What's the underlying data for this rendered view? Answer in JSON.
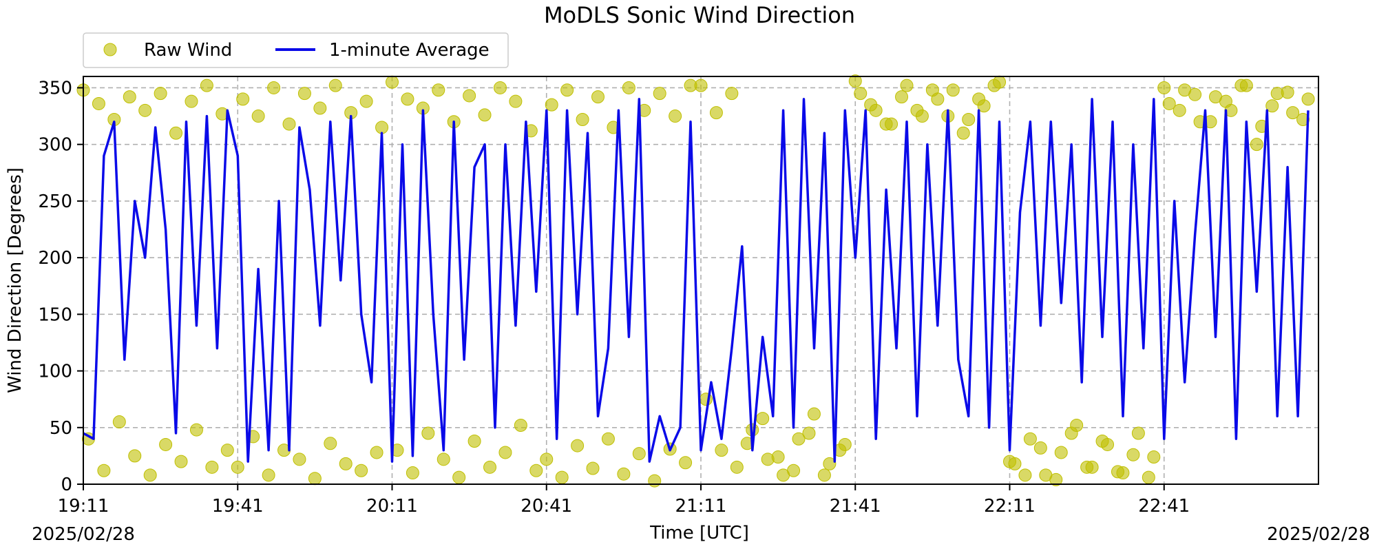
{
  "chart_data": {
    "type": "line",
    "title": "MoDLS Sonic Wind Direction",
    "xlabel": "Time [UTC]",
    "ylabel": "Wind Direction [Degrees]",
    "date_left": "2025/02/28",
    "date_right": "2025/02/28",
    "xlim": [
      "19:11",
      "23:11"
    ],
    "ylim": [
      0,
      360
    ],
    "grid": true,
    "legend_position": "top-left-outside",
    "x_ticks": [
      "19:11",
      "19:41",
      "20:11",
      "20:41",
      "21:11",
      "21:41",
      "22:11",
      "22:41"
    ],
    "y_ticks": [
      0,
      50,
      100,
      150,
      200,
      250,
      300,
      350
    ],
    "series": [
      {
        "name": "Raw Wind",
        "kind": "scatter",
        "color": "#bfbf00",
        "x": [
          "19:11",
          "19:14",
          "19:17",
          "19:20",
          "19:23",
          "19:26",
          "19:29",
          "19:32",
          "19:35",
          "19:38",
          "19:41",
          "19:44",
          "19:47",
          "19:50",
          "19:53",
          "19:56",
          "19:59",
          "20:02",
          "20:05",
          "20:08",
          "20:11",
          "20:14",
          "20:17",
          "20:20",
          "20:23",
          "20:26",
          "20:29",
          "20:32",
          "20:35",
          "20:38",
          "20:41",
          "20:44",
          "20:47",
          "20:50",
          "20:53",
          "20:56",
          "20:59",
          "21:02",
          "21:05",
          "21:08",
          "21:11",
          "21:14",
          "21:17",
          "21:20",
          "21:23",
          "21:26",
          "21:29",
          "21:32",
          "21:35",
          "21:38",
          "21:41",
          "21:44",
          "21:47",
          "21:50",
          "21:53",
          "21:56",
          "21:59",
          "22:02",
          "22:05",
          "22:08",
          "22:11",
          "22:14",
          "22:17",
          "22:20",
          "22:23",
          "22:26",
          "22:29",
          "22:32",
          "22:35",
          "22:38",
          "22:41",
          "22:44",
          "22:47",
          "22:50",
          "22:53",
          "22:56",
          "22:59",
          "23:02",
          "23:05",
          "23:08",
          "19:12",
          "19:15",
          "19:18",
          "19:21",
          "19:24",
          "19:27",
          "19:30",
          "19:33",
          "19:36",
          "19:39",
          "19:42",
          "19:45",
          "19:48",
          "19:51",
          "19:54",
          "19:57",
          "20:00",
          "20:03",
          "20:06",
          "20:09",
          "20:12",
          "20:15",
          "20:18",
          "20:21",
          "20:24",
          "20:27",
          "20:30",
          "20:33",
          "20:36",
          "20:39",
          "20:42",
          "20:45",
          "20:48",
          "20:51",
          "20:54",
          "20:57",
          "21:00",
          "21:03",
          "21:06",
          "21:09",
          "21:12",
          "21:15",
          "21:18",
          "21:21",
          "21:24",
          "21:27",
          "21:30",
          "21:33",
          "21:36",
          "21:39",
          "21:42",
          "21:45",
          "21:48",
          "21:51",
          "21:54",
          "21:57",
          "22:00",
          "22:03",
          "22:06",
          "22:09",
          "22:12",
          "22:15",
          "22:18",
          "22:21",
          "22:24",
          "22:27",
          "22:30",
          "22:33",
          "22:36",
          "22:39",
          "22:42",
          "22:45",
          "22:48",
          "22:51",
          "22:54",
          "22:57",
          "23:00",
          "23:03",
          "23:06",
          "23:09"
        ],
        "y": [
          348,
          336,
          322,
          342,
          330,
          345,
          310,
          338,
          352,
          327,
          15,
          42,
          8,
          30,
          22,
          5,
          36,
          18,
          12,
          28,
          355,
          340,
          332,
          348,
          320,
          343,
          326,
          350,
          338,
          312,
          22,
          6,
          34,
          14,
          40,
          9,
          27,
          3,
          31,
          19,
          352,
          328,
          345,
          36,
          58,
          24,
          12,
          45,
          8,
          30,
          356,
          335,
          318,
          342,
          330,
          348,
          325,
          310,
          340,
          352,
          20,
          8,
          32,
          4,
          45,
          15,
          38,
          11,
          26,
          6,
          350,
          330,
          344,
          320,
          338,
          352,
          300,
          334,
          346,
          322,
          40,
          12,
          55,
          25,
          8,
          35,
          20,
          48,
          15,
          30,
          340,
          325,
          350,
          318,
          345,
          332,
          352,
          328,
          338,
          315,
          30,
          10,
          45,
          22,
          6,
          38,
          15,
          28,
          52,
          12,
          335,
          348,
          322,
          342,
          315,
          350,
          330,
          345,
          325,
          352,
          75,
          30,
          15,
          48,
          22,
          8,
          40,
          62,
          18,
          35,
          345,
          330,
          318,
          352,
          325,
          340,
          348,
          322,
          334,
          355,
          18,
          40,
          8,
          28,
          52,
          15,
          35,
          10,
          45,
          24,
          336,
          348,
          320,
          342,
          330,
          352,
          316,
          345,
          328,
          340
        ]
      },
      {
        "name": "1-minute Average",
        "kind": "line",
        "color": "#0a0ae8",
        "x": [
          "19:11",
          "19:13",
          "19:15",
          "19:17",
          "19:19",
          "19:21",
          "19:23",
          "19:25",
          "19:27",
          "19:29",
          "19:31",
          "19:33",
          "19:35",
          "19:37",
          "19:39",
          "19:41",
          "19:43",
          "19:45",
          "19:47",
          "19:49",
          "19:51",
          "19:53",
          "19:55",
          "19:57",
          "19:59",
          "20:01",
          "20:03",
          "20:05",
          "20:07",
          "20:09",
          "20:11",
          "20:13",
          "20:15",
          "20:17",
          "20:19",
          "20:21",
          "20:23",
          "20:25",
          "20:27",
          "20:29",
          "20:31",
          "20:33",
          "20:35",
          "20:37",
          "20:39",
          "20:41",
          "20:43",
          "20:45",
          "20:47",
          "20:49",
          "20:51",
          "20:53",
          "20:55",
          "20:57",
          "20:59",
          "21:01",
          "21:03",
          "21:05",
          "21:07",
          "21:09",
          "21:11",
          "21:13",
          "21:15",
          "21:17",
          "21:19",
          "21:21",
          "21:23",
          "21:25",
          "21:27",
          "21:29",
          "21:31",
          "21:33",
          "21:35",
          "21:37",
          "21:39",
          "21:41",
          "21:43",
          "21:45",
          "21:47",
          "21:49",
          "21:51",
          "21:53",
          "21:55",
          "21:57",
          "21:59",
          "22:01",
          "22:03",
          "22:05",
          "22:07",
          "22:09",
          "22:11",
          "22:13",
          "22:15",
          "22:17",
          "22:19",
          "22:21",
          "22:23",
          "22:25",
          "22:27",
          "22:29",
          "22:31",
          "22:33",
          "22:35",
          "22:37",
          "22:39",
          "22:41",
          "22:43",
          "22:45",
          "22:47",
          "22:49",
          "22:51",
          "22:53",
          "22:55",
          "22:57",
          "22:59",
          "23:01",
          "23:03",
          "23:05",
          "23:07",
          "23:09"
        ],
        "y": [
          45,
          40,
          290,
          320,
          110,
          250,
          200,
          315,
          225,
          45,
          320,
          140,
          325,
          120,
          330,
          290,
          20,
          190,
          30,
          250,
          30,
          315,
          260,
          140,
          320,
          180,
          325,
          150,
          90,
          310,
          20,
          300,
          25,
          330,
          150,
          30,
          320,
          110,
          280,
          300,
          50,
          300,
          140,
          320,
          170,
          330,
          40,
          330,
          150,
          310,
          60,
          120,
          330,
          130,
          340,
          20,
          60,
          30,
          50,
          320,
          30,
          90,
          40,
          120,
          210,
          30,
          130,
          60,
          330,
          50,
          340,
          120,
          310,
          20,
          330,
          200,
          330,
          40,
          260,
          120,
          320,
          60,
          300,
          140,
          330,
          110,
          60,
          330,
          50,
          320,
          30,
          240,
          320,
          140,
          320,
          160,
          300,
          90,
          340,
          130,
          320,
          60,
          300,
          120,
          340,
          40,
          250,
          90,
          220,
          330,
          130,
          330,
          40,
          320,
          170,
          330,
          60,
          280,
          60,
          330
        ]
      }
    ]
  }
}
